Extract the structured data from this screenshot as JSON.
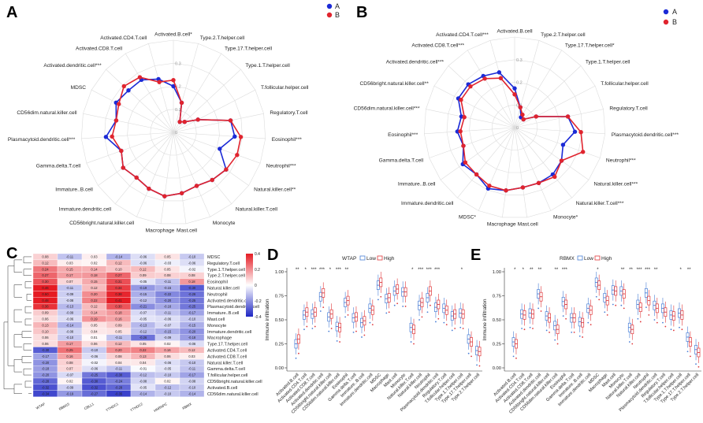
{
  "panels": {
    "A": "A",
    "B": "B",
    "C": "C",
    "D": "D",
    "E": "E"
  },
  "colors": {
    "groupA": "#1b2ad6",
    "groupB": "#e0242e",
    "low": "#4a7fd6",
    "high": "#e0383b"
  },
  "radar_legend": {
    "a": "A",
    "b": "B"
  },
  "chart_data": [
    {
      "id": "A",
      "type": "radar",
      "title": "",
      "series_names": [
        "A",
        "B"
      ],
      "rmax": 0.3,
      "ring_ticks": [
        "0",
        "0.1",
        "0.2",
        "0.3"
      ],
      "axes": [
        "Activated.B.cell*",
        "Type.2.T.helper.cell",
        "Type.17.T.helper.cell",
        "Type.1.T.helper.cell",
        "T.follicular.helper.cell",
        "Regulatory.T.cell",
        "Eosinophil***",
        "Neutrophil***",
        "Natural.killer.cell**",
        "Natural.killer.T.cell",
        "Monocyte",
        "Mast.cell",
        "Macrophage",
        "CD56bright.natural.killer.cell",
        "Immature.dendritic.cell",
        "Immature..B.cell",
        "Gamma.delta.T.cell",
        "Plasmacytoid.dendritic.cell***",
        "CD56dim.natural.killer.cell",
        "MDSC",
        "Activated.dendritic.cell***",
        "Activated.CD8.T.cell",
        "Activated.CD4.T.cell"
      ],
      "series": [
        {
          "name": "A",
          "values": [
            0.15,
            0.1,
            0.04,
            0.05,
            0.09,
            0.19,
            0.2,
            0.16,
            0.21,
            0.2,
            0.19,
            0.2,
            0.21,
            0.2,
            0.19,
            0.2,
            0.18,
            0.22,
            0.19,
            0.21,
            0.2,
            0.2,
            0.18
          ]
        },
        {
          "name": "B",
          "values": [
            0.17,
            0.1,
            0.04,
            0.05,
            0.09,
            0.19,
            0.22,
            0.22,
            0.21,
            0.2,
            0.19,
            0.2,
            0.21,
            0.2,
            0.19,
            0.2,
            0.18,
            0.2,
            0.19,
            0.2,
            0.22,
            0.21,
            0.17
          ]
        }
      ]
    },
    {
      "id": "B",
      "type": "radar",
      "title": "",
      "series_names": [
        "A",
        "B"
      ],
      "rmax": 0.3,
      "ring_ticks": [
        "0",
        "0.1",
        "0.2",
        "0.3"
      ],
      "axes": [
        "Activated.B.cell",
        "Type.2.T.helper.cell",
        "Type.17.T.helper.cell*",
        "Type.1.T.helper.cell",
        "T.follicular.helper.cell",
        "Regulatory.T.cell",
        "Plasmacytoid.dendritic.cell***",
        "Neutrophil***",
        "Natural.killer.cell***",
        "Natural.killer.T.cell***",
        "Monocyte*",
        "Mast.cell",
        "Macrophage",
        "MDSC*",
        "Immature.dendritic.cell",
        "Immature..B.cell",
        "Gamma.delta.T.cell",
        "Eosinophil***",
        "CD56dim.natural.killer.cell***",
        "CD56bright.natural.killer.cell**",
        "Activated.dendritic.cell***",
        "Activated.CD8.T.cell***",
        "Activated.CD4.T.cell***"
      ],
      "series": [
        {
          "name": "A",
          "values": [
            0.13,
            0.07,
            0.04,
            0.04,
            0.08,
            0.18,
            0.2,
            0.17,
            0.19,
            0.2,
            0.2,
            0.2,
            0.21,
            0.22,
            0.2,
            0.21,
            0.18,
            0.19,
            0.18,
            0.21,
            0.21,
            0.2,
            0.19
          ]
        },
        {
          "name": "B",
          "values": [
            0.11,
            0.07,
            0.05,
            0.04,
            0.08,
            0.18,
            0.22,
            0.24,
            0.19,
            0.21,
            0.2,
            0.2,
            0.21,
            0.21,
            0.2,
            0.2,
            0.18,
            0.18,
            0.17,
            0.2,
            0.2,
            0.19,
            0.17
          ]
        }
      ]
    },
    {
      "id": "C",
      "type": "heatmap",
      "title": "",
      "columns": [
        "WTAP",
        "RBM15",
        "CBLL1",
        "YTHDC1",
        "YTHDC2",
        "HNRNPC",
        "RBMX"
      ],
      "rows": [
        "MDSC",
        "Regulatory.T.cell",
        "Type.1.T.helper.cell",
        "Type.2.T.helper.cell",
        "Eosinophil",
        "Natural.killer.cell",
        "Neutrophil",
        "Activated.dendritic.cell",
        "Plasmacytoid.dendritic.cell",
        "Immature..B.cell",
        "Mast.cell",
        "Monocyte",
        "Immature.dendritic.cell",
        "Macrophage",
        "Type.17.T.helper.cell",
        "Activated.CD4.T.cell",
        "Activated.CD8.T.cell",
        "Natural.killer.T.cell",
        "Gamma.delta.T.cell",
        "T.follicular.helper.cell",
        "CD56bright.natural.killer.cell",
        "Activated.B.cell",
        "CD56dim.natural.killer.cell"
      ],
      "scale": [
        -0.4,
        0.4
      ],
      "scale_ticks": [
        "0.4",
        "0.2",
        "0",
        "-0.2",
        "-0.4"
      ],
      "values": [
        [
          0.08,
          -0.11,
          0.03,
          -0.14,
          -0.06,
          0.05,
          -0.1
        ],
        [
          0.12,
          0.03,
          0.02,
          0.12,
          -0.06,
          -0.03,
          -0.06
        ],
        [
          0.24,
          0.15,
          0.14,
          0.1,
          0.12,
          0.05,
          -0.02
        ],
        [
          0.27,
          0.17,
          0.18,
          0.27,
          0.09,
          0.08,
          0.08
        ],
        [
          0.3,
          0.07,
          0.15,
          0.31,
          -0.05,
          -0.11,
          0.18
        ],
        [
          0.46,
          -0.11,
          0.12,
          0.34,
          -0.19,
          -0.15,
          -0.3
        ],
        [
          0.5,
          -0.09,
          0.2,
          0.38,
          -0.15,
          -0.22,
          -0.26
        ],
        [
          0.48,
          -0.08,
          0.22,
          0.41,
          -0.12,
          -0.2,
          -0.25
        ],
        [
          0.36,
          -0.13,
          0.12,
          0.3,
          -0.21,
          -0.16,
          -0.25
        ],
        [
          0.09,
          -0.09,
          0.14,
          0.18,
          -0.07,
          -0.11,
          -0.17
        ],
        [
          0.06,
          -0.06,
          0.19,
          0.16,
          -0.05,
          -0.06,
          -0.1
        ],
        [
          0.13,
          -0.14,
          0.05,
          0.09,
          -0.13,
          -0.07,
          -0.15
        ],
        [
          0.1,
          -0.08,
          0.04,
          0.05,
          -0.12,
          -0.15,
          -0.2
        ],
        [
          0.06,
          -0.1,
          0.01,
          -0.11,
          -0.26,
          -0.09,
          -0.18
        ],
        [
          0.06,
          0.17,
          0.06,
          0.12,
          0.05,
          0.02,
          -0.06
        ],
        [
          -0.3,
          0.25,
          -0.1,
          0.2,
          0.22,
          0.16,
          0.12
        ],
        [
          -0.17,
          0.16,
          -0.06,
          0.08,
          0.13,
          0.06,
          0.03
        ],
        [
          -0.2,
          0.08,
          -0.02,
          0.04,
          0.04,
          -0.06,
          -0.1
        ],
        [
          -0.18,
          0.07,
          -0.06,
          -0.11,
          -0.01,
          -0.05,
          -0.11
        ],
        [
          -0.2,
          -0.07,
          -0.25,
          -0.3,
          -0.12,
          -0.1,
          -0.17
        ],
        [
          -0.28,
          0.02,
          -0.3,
          -0.24,
          -0.08,
          0.02,
          -0.08
        ],
        [
          -0.32,
          -0.09,
          -0.32,
          -0.28,
          -0.05,
          -0.12,
          -0.1
        ],
        [
          -0.34,
          -0.19,
          -0.27,
          -0.35,
          -0.14,
          -0.1,
          -0.14
        ]
      ]
    },
    {
      "id": "D",
      "type": "boxplot",
      "title": "WTAP",
      "ylabel": "Immune infiltration",
      "ylim": [
        0,
        1
      ],
      "yticks": [
        "0.00",
        "0.25",
        "0.50",
        "0.75",
        "1.00"
      ],
      "legend": [
        "Low",
        "High"
      ],
      "categories": [
        "Activated.B.cell",
        "Activated.CD4.T.cell",
        "Activated.CD8.T.cell",
        "Activated.dendritic.cell",
        "CD56bright.natural.killer.cell",
        "CD56dim.natural.killer.cell",
        "Eosinophil",
        "Gamma.delta.T.cell",
        "Immature..B.cell",
        "Immature.dendritic.cell",
        "MDSC",
        "Macrophage",
        "Mast.cell",
        "Monocyte",
        "Natural.killer.T.cell",
        "Natural.killer.cell",
        "Neutrophil",
        "Plasmacytoid.dendritic.cell",
        "Regulatory.T.cell",
        "T.follicular.helper.cell",
        "Type.1.T.helper.cell",
        "Type.17.T.helper.cell",
        "Type.2.T.helper.cell"
      ],
      "significance": [
        "**",
        "*",
        "***",
        "***",
        "*",
        "***",
        "**",
        "",
        "",
        "",
        "",
        "",
        "",
        "",
        "*",
        "***",
        "***",
        "***",
        "",
        "",
        "*",
        "",
        ""
      ],
      "low_median": [
        0.25,
        0.55,
        0.56,
        0.74,
        0.53,
        0.43,
        0.68,
        0.52,
        0.47,
        0.62,
        0.86,
        0.72,
        0.8,
        0.79,
        0.42,
        0.65,
        0.73,
        0.63,
        0.62,
        0.54,
        0.57,
        0.3,
        0.18
      ],
      "high_median": [
        0.3,
        0.58,
        0.58,
        0.78,
        0.56,
        0.42,
        0.7,
        0.53,
        0.49,
        0.6,
        0.89,
        0.73,
        0.82,
        0.79,
        0.4,
        0.68,
        0.8,
        0.66,
        0.6,
        0.56,
        0.56,
        0.27,
        0.17
      ]
    },
    {
      "id": "E",
      "type": "boxplot",
      "title": "RBMX",
      "ylabel": "Immune infiltration",
      "ylim": [
        0,
        1
      ],
      "yticks": [
        "0.00",
        "0.25",
        "0.50",
        "0.75",
        "1.00"
      ],
      "legend": [
        "Low",
        "High"
      ],
      "categories": [
        "Activated.B.cell",
        "Activated.CD4.T.cell",
        "Activated.CD8.T.cell",
        "Activated.dendritic.cell",
        "CD56bright.natural.killer.cell",
        "CD56dim.natural.killer.cell",
        "Eosinophil",
        "Gamma.delta.T.cell",
        "Immature..B.cell",
        "Immature.dendritic.cell",
        "MDSC",
        "Macrophage",
        "Mast.cell",
        "Monocyte",
        "Natural.killer.T.cell",
        "Natural.killer.cell",
        "Neutrophil",
        "Plasmacytoid.dendritic.cell",
        "Regulatory.T.cell",
        "T.follicular.helper.cell",
        "Type.1.T.helper.cell",
        "Type.17.T.helper.cell",
        "Type.2.T.helper.cell"
      ],
      "significance": [
        "*",
        "*",
        "**",
        "**",
        "",
        "**",
        "***",
        "",
        "",
        "",
        "*",
        "",
        "",
        "**",
        "**",
        "***",
        "***",
        "**",
        "",
        "",
        "*",
        "**",
        ""
      ],
      "low_median": [
        0.27,
        0.56,
        0.57,
        0.77,
        0.54,
        0.44,
        0.69,
        0.52,
        0.48,
        0.62,
        0.89,
        0.73,
        0.81,
        0.8,
        0.42,
        0.66,
        0.78,
        0.65,
        0.62,
        0.55,
        0.57,
        0.32,
        0.19
      ],
      "high_median": [
        0.25,
        0.55,
        0.56,
        0.74,
        0.52,
        0.4,
        0.66,
        0.52,
        0.47,
        0.6,
        0.86,
        0.7,
        0.8,
        0.77,
        0.4,
        0.63,
        0.7,
        0.62,
        0.58,
        0.54,
        0.55,
        0.27,
        0.16
      ]
    }
  ]
}
